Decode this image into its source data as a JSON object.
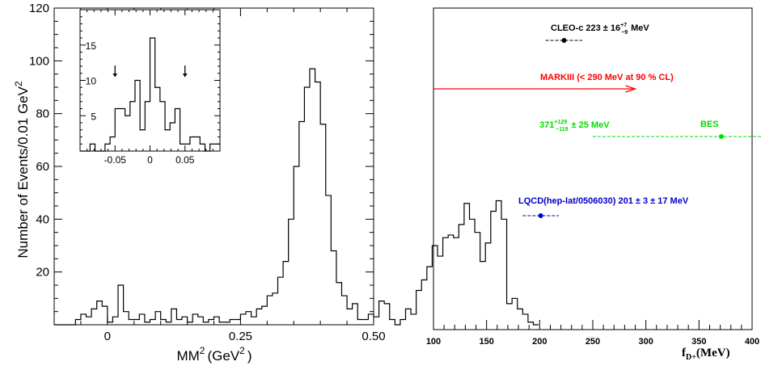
{
  "chart_data": [
    {
      "type": "histogram",
      "xlabel": "MM",
      "xlabel_units": "(GeV",
      "xlabel_close": ")",
      "superscript": "2",
      "ylabel": "Number of Events/0.01 GeV",
      "xlim": [
        -0.1,
        0.5
      ],
      "ylim": [
        0,
        120
      ],
      "xticks": [
        0,
        0.25,
        0.5
      ],
      "xtick_labels": [
        "0",
        "0.25",
        "0.50"
      ],
      "yticks": [
        20,
        40,
        60,
        80,
        100,
        120
      ],
      "ytick_labels": [
        "20",
        "40",
        "60",
        "80",
        "100",
        "120"
      ],
      "bin_width": 0.01,
      "bin_start": -0.1,
      "values": [
        0,
        0,
        0,
        0,
        2,
        4,
        3,
        6,
        9,
        7,
        1,
        3,
        15,
        5,
        2,
        2,
        4,
        1,
        2,
        5,
        2,
        1,
        6,
        2,
        3,
        1,
        4,
        3,
        1,
        2,
        3,
        1,
        1,
        2,
        2,
        4,
        5,
        3,
        6,
        7,
        11,
        12,
        18,
        24,
        40,
        60,
        77,
        90,
        97,
        92,
        76,
        49,
        28,
        16,
        11,
        6,
        8,
        2,
        2,
        4,
        3,
        9,
        8,
        2,
        0,
        2,
        6,
        4,
        13,
        17,
        22,
        30,
        26,
        33,
        34,
        33,
        38,
        46,
        40,
        35,
        24,
        31,
        43,
        47,
        40,
        8,
        10,
        6,
        4,
        1,
        0
      ],
      "inset": {
        "xlim": [
          -0.1,
          0.1
        ],
        "ylim": [
          0,
          20
        ],
        "xticks": [
          -0.05,
          0,
          0.05
        ],
        "xtick_labels": [
          "-0.05",
          "0",
          "0.05"
        ],
        "yticks": [
          5,
          10,
          15
        ],
        "ytick_labels": [
          "5",
          "10",
          "15"
        ],
        "values": [
          0,
          0,
          1,
          0,
          0,
          1,
          2,
          6,
          6,
          5,
          7,
          10,
          3,
          7,
          16,
          9,
          7,
          3,
          4,
          6,
          1,
          1,
          2,
          2,
          1,
          0,
          1,
          1
        ],
        "arrows_at": [
          -0.05,
          0.05
        ]
      }
    },
    {
      "type": "error_bar",
      "xlabel": "f",
      "xlabel_sub": "D+",
      "xlabel_units": "(MeV)",
      "xlim": [
        100,
        400
      ],
      "xticks": [
        100,
        150,
        200,
        250,
        300,
        350,
        400
      ],
      "xtick_labels": [
        "100",
        "150",
        "200",
        "250",
        "300",
        "350",
        "400"
      ],
      "series": [
        {
          "name": "CLEO-c",
          "label": "CLEO-c 223 ± 16",
          "label_sup": "+7",
          "label_sub": "−9",
          "label_units": "MeV",
          "value": 223,
          "err_lo": 17.5,
          "err_hi": 17,
          "color": "#000000"
        },
        {
          "name": "MARKIII",
          "label": "MARKIII (< 290 MeV at 90 % CL)",
          "upper_limit": 290,
          "color": "#ff0000"
        },
        {
          "name": "BES",
          "label_main": "371",
          "label_sup": "+129",
          "label_sub": "−119",
          "label_rest": "± 25 MeV",
          "label_name": "BES",
          "value": 371,
          "err_lo": 121,
          "err_hi": 131,
          "color": "#00dd00"
        },
        {
          "name": "LQCD",
          "label": "LQCD(hep-lat/0506030) 201 ± 3 ± 17 MeV",
          "value": 201,
          "err_lo": 17,
          "err_hi": 17,
          "color": "#0000cc"
        }
      ]
    }
  ]
}
